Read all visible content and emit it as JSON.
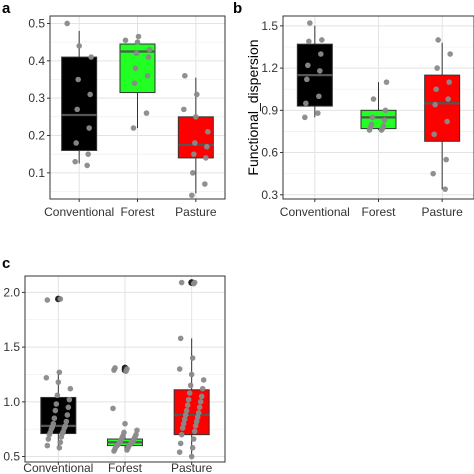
{
  "chart_data": [
    {
      "panel": "a",
      "type": "box",
      "ylabel": "",
      "ylim": [
        0.03,
        0.52
      ],
      "yticks": [
        0.1,
        0.2,
        0.3,
        0.4,
        0.5
      ],
      "tick_labels": [
        "0.1",
        "0.2",
        "0.3",
        "0.4",
        "0.5"
      ],
      "grid": true,
      "categories": [
        "Conventional",
        "Forest",
        "Pasture"
      ],
      "colors": [
        "#000000",
        "#22ff22",
        "#ff0000"
      ],
      "boxes": [
        {
          "low": 0.125,
          "q1": 0.16,
          "median": 0.255,
          "q3": 0.41,
          "high": 0.48
        },
        {
          "low": 0.22,
          "q1": 0.315,
          "median": 0.425,
          "q3": 0.445,
          "high": 0.455
        },
        {
          "low": 0.045,
          "q1": 0.14,
          "median": 0.175,
          "q3": 0.25,
          "high": 0.355
        }
      ],
      "outliers": [
        [],
        [],
        []
      ],
      "points": [
        [
          0.5,
          0.44,
          0.41,
          0.35,
          0.31,
          0.27,
          0.22,
          0.18,
          0.15,
          0.13,
          0.12
        ],
        [
          0.465,
          0.455,
          0.45,
          0.43,
          0.42,
          0.41,
          0.38,
          0.36,
          0.34,
          0.26,
          0.22
        ],
        [
          0.36,
          0.31,
          0.27,
          0.25,
          0.21,
          0.18,
          0.17,
          0.15,
          0.14,
          0.1,
          0.07,
          0.04
        ]
      ]
    },
    {
      "panel": "b",
      "type": "box",
      "ylabel": "Functional_dispersion",
      "ylim": [
        0.27,
        1.57
      ],
      "yticks": [
        0.3,
        0.6,
        0.9,
        1.2,
        1.5
      ],
      "tick_labels": [
        "0.3",
        "0.6",
        "0.9",
        "1.2",
        "1.5"
      ],
      "grid": true,
      "categories": [
        "Conventional",
        "Forest",
        "Pasture"
      ],
      "colors": [
        "#000000",
        "#22ff22",
        "#ff0000"
      ],
      "boxes": [
        {
          "low": 0.85,
          "q1": 0.93,
          "median": 1.15,
          "q3": 1.37,
          "high": 1.5
        },
        {
          "low": 0.76,
          "q1": 0.77,
          "median": 0.85,
          "q3": 0.9,
          "high": 1.1
        },
        {
          "low": 0.34,
          "q1": 0.68,
          "median": 0.95,
          "q3": 1.15,
          "high": 1.38
        }
      ],
      "outliers": [
        [],
        [],
        []
      ],
      "points": [
        [
          1.52,
          1.4,
          1.39,
          1.3,
          1.22,
          1.18,
          1.12,
          1.0,
          0.95,
          0.88,
          0.85
        ],
        [
          1.1,
          0.98,
          0.9,
          0.85,
          0.83,
          0.8,
          0.79,
          0.78,
          0.77,
          0.76,
          0.76
        ],
        [
          1.4,
          1.3,
          1.2,
          1.1,
          1.05,
          0.98,
          0.94,
          0.82,
          0.73,
          0.55,
          0.45,
          0.34
        ]
      ]
    },
    {
      "panel": "c",
      "type": "box",
      "ylabel": "",
      "ylim": [
        0.45,
        2.15
      ],
      "yticks": [
        0.5,
        1.0,
        1.5,
        2.0
      ],
      "tick_labels": [
        "0.5",
        "1.0",
        "1.5",
        "2.0"
      ],
      "grid": true,
      "categories": [
        "Conventional",
        "Forest",
        "Pasture"
      ],
      "colors": [
        "#000000",
        "#22ff22",
        "#ff0000"
      ],
      "boxes": [
        {
          "low": 0.58,
          "q1": 0.71,
          "median": 0.78,
          "q3": 1.04,
          "high": 1.27
        },
        {
          "low": 0.55,
          "q1": 0.6,
          "median": 0.63,
          "q3": 0.66,
          "high": 0.72
        },
        {
          "low": 0.5,
          "q1": 0.7,
          "median": 0.88,
          "q3": 1.11,
          "high": 1.58
        }
      ],
      "outliers": [
        [
          1.94
        ],
        [
          1.31,
          1.29
        ],
        [
          2.09,
          2.09
        ]
      ],
      "points": [
        [
          1.94,
          1.93,
          1.27,
          1.22,
          1.18,
          1.12,
          1.06,
          1.02,
          0.98,
          0.95,
          0.92,
          0.88,
          0.85,
          0.82,
          0.8,
          0.78,
          0.77,
          0.76,
          0.75,
          0.73,
          0.72,
          0.71,
          0.7,
          0.68,
          0.66,
          0.63,
          0.6,
          0.58
        ],
        [
          1.31,
          1.3,
          1.29,
          1.28,
          0.94,
          0.8,
          0.74,
          0.72,
          0.7,
          0.69,
          0.68,
          0.67,
          0.66,
          0.65,
          0.64,
          0.63,
          0.63,
          0.62,
          0.62,
          0.61,
          0.61,
          0.6,
          0.6,
          0.59,
          0.58,
          0.57,
          0.56,
          0.55
        ],
        [
          2.09,
          2.09,
          2.08,
          1.58,
          1.4,
          1.3,
          1.25,
          1.2,
          1.15,
          1.12,
          1.08,
          1.05,
          1.02,
          1.0,
          0.97,
          0.95,
          0.92,
          0.9,
          0.88,
          0.86,
          0.84,
          0.82,
          0.8,
          0.78,
          0.76,
          0.73,
          0.7,
          0.66,
          0.62,
          0.58,
          0.54,
          0.5
        ]
      ]
    }
  ]
}
